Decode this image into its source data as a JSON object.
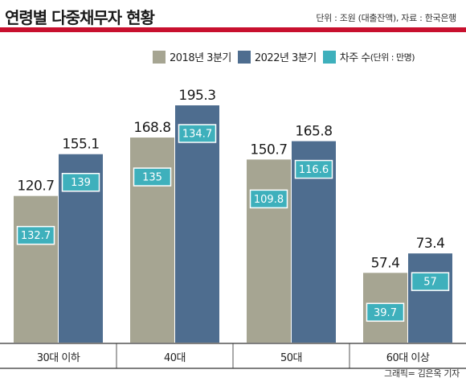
{
  "header": {
    "title": "연령별 다중채무자 현황",
    "unit_note": "단위 : 조원 (대출잔액), 자료 : 한국은행"
  },
  "legend": {
    "series1": "2018년 3분기",
    "series2": "2022년 3분기",
    "series3": "차주 수",
    "series3_unit": "(단위 : 만명)"
  },
  "credit": "그래픽= 김은옥 기자",
  "colors": {
    "accent_rule": "#c8102e",
    "series_2018": "#a6a592",
    "series_2022": "#4e6d8f",
    "borrowers": "#3eb0bc"
  },
  "chart_data": {
    "type": "bar",
    "title": "연령별 다중채무자 현황",
    "categories": [
      "30대 이하",
      "40대",
      "50대",
      "60대 이상"
    ],
    "series": [
      {
        "name": "2018년 3분기",
        "values": [
          120.7,
          168.8,
          150.7,
          57.4
        ]
      },
      {
        "name": "2022년 3분기",
        "values": [
          155.1,
          195.3,
          165.8,
          73.4
        ]
      }
    ],
    "borrowers": {
      "name": "차주 수",
      "unit": "만명",
      "values_2018": [
        132.7,
        135,
        109.8,
        39.7
      ],
      "values_2022": [
        139,
        134.7,
        116.6,
        57
      ]
    },
    "ylim": [
      0,
      195.3
    ],
    "grid": false,
    "legend_position": "top-right"
  }
}
